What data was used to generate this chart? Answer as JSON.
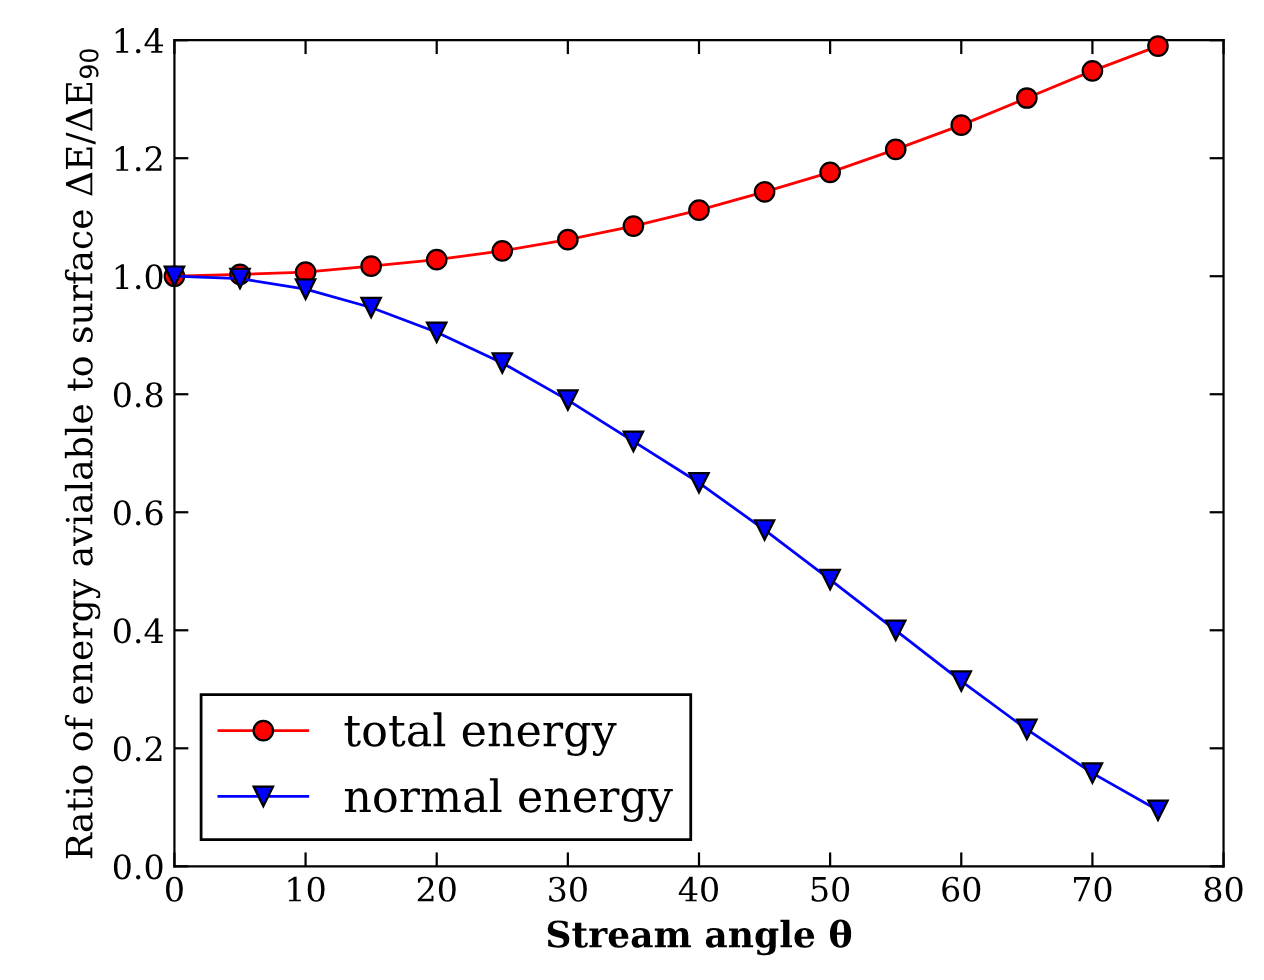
{
  "chart_data": {
    "type": "line",
    "xlabel": "Stream angle θ",
    "ylabel": "Ratio of energy avialable to surface ΔE/ΔE$_{90}$",
    "x": [
      0,
      5,
      10,
      15,
      20,
      25,
      30,
      35,
      40,
      45,
      50,
      55,
      60,
      65,
      70,
      75
    ],
    "series": [
      {
        "name": "total energy",
        "color": "#ff0000",
        "marker": "circle",
        "values": [
          1.0,
          1.003,
          1.007,
          1.017,
          1.028,
          1.043,
          1.062,
          1.085,
          1.112,
          1.143,
          1.176,
          1.215,
          1.256,
          1.302,
          1.348,
          1.39
        ]
      },
      {
        "name": "normal energy",
        "color": "#0000ff",
        "marker": "triangle",
        "values": [
          1.0,
          0.996,
          0.978,
          0.947,
          0.905,
          0.853,
          0.79,
          0.72,
          0.65,
          0.57,
          0.486,
          0.4,
          0.314,
          0.232,
          0.158,
          0.095
        ]
      }
    ],
    "xlim": [
      0,
      80
    ],
    "xticks": [
      0,
      10,
      20,
      30,
      40,
      50,
      60,
      70,
      80
    ],
    "ylim": [
      0,
      1.4
    ],
    "yticks": [
      {
        "value": 0,
        "label": "0.0"
      },
      0.2,
      0.4,
      0.6,
      0.8,
      {
        "value": 1,
        "label": "1.0"
      },
      1.2,
      1.4
    ],
    "grid": false,
    "legend": "bottom left",
    "line_style": "solid"
  }
}
